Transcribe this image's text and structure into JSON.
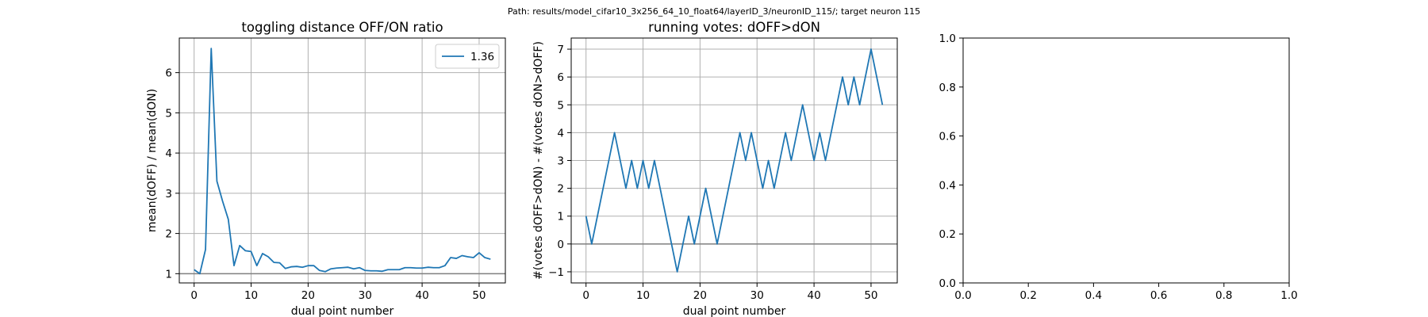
{
  "suptitle": "Path: results/model_cifar10_3x256_64_10_float64/layerID_3/neuronID_115/; target neuron 115",
  "colors": {
    "series": "#1f77b4",
    "hline": "#808080",
    "grid": "#b0b0b0",
    "axes": "#000000",
    "background": "#ffffff"
  },
  "chart_data": [
    {
      "type": "line",
      "title": "toggling distance OFF/ON ratio",
      "xlabel": "dual point number",
      "ylabel": "mean(dOFF) / mean(dON)",
      "xlim": [
        -2.6,
        54.6
      ],
      "ylim": [
        0.77,
        6.86
      ],
      "xticks": [
        0,
        10,
        20,
        30,
        40,
        50
      ],
      "yticks": [
        1,
        2,
        3,
        4,
        5,
        6
      ],
      "grid": true,
      "hline": 1,
      "legend": {
        "position": "upper right",
        "entries": [
          "1.36"
        ]
      },
      "series": [
        {
          "name": "1.36",
          "x": [
            0,
            1,
            2,
            3,
            4,
            5,
            6,
            7,
            8,
            9,
            10,
            11,
            12,
            13,
            14,
            15,
            16,
            17,
            18,
            19,
            20,
            21,
            22,
            23,
            24,
            25,
            26,
            27,
            28,
            29,
            30,
            31,
            32,
            33,
            34,
            35,
            36,
            37,
            38,
            39,
            40,
            41,
            42,
            43,
            44,
            45,
            46,
            47,
            48,
            49,
            50,
            51,
            52
          ],
          "y": [
            1.1,
            1.0,
            1.6,
            6.6,
            3.3,
            2.8,
            2.35,
            1.2,
            1.7,
            1.57,
            1.55,
            1.2,
            1.5,
            1.42,
            1.28,
            1.27,
            1.13,
            1.17,
            1.18,
            1.16,
            1.2,
            1.2,
            1.08,
            1.05,
            1.12,
            1.14,
            1.15,
            1.16,
            1.12,
            1.15,
            1.08,
            1.07,
            1.07,
            1.06,
            1.1,
            1.1,
            1.1,
            1.15,
            1.15,
            1.14,
            1.14,
            1.16,
            1.15,
            1.15,
            1.2,
            1.4,
            1.38,
            1.45,
            1.42,
            1.4,
            1.52,
            1.4,
            1.36
          ]
        }
      ]
    },
    {
      "type": "line",
      "title": "running votes: dOFF>dON",
      "xlabel": "dual point number",
      "ylabel": "#(votes dOFF>dON) - #(votes dON>dOFF)",
      "xlim": [
        -2.6,
        54.6
      ],
      "ylim": [
        -1.4,
        7.4
      ],
      "xticks": [
        0,
        10,
        20,
        30,
        40,
        50
      ],
      "yticks": [
        -1,
        0,
        1,
        2,
        3,
        4,
        5,
        6,
        7
      ],
      "grid": true,
      "hline": 0,
      "series": [
        {
          "x": [
            0,
            1,
            2,
            3,
            4,
            5,
            6,
            7,
            8,
            9,
            10,
            11,
            12,
            13,
            14,
            15,
            16,
            17,
            18,
            19,
            20,
            21,
            22,
            23,
            24,
            25,
            26,
            27,
            28,
            29,
            30,
            31,
            32,
            33,
            34,
            35,
            36,
            37,
            38,
            39,
            40,
            41,
            42,
            43,
            44,
            45,
            46,
            47,
            48,
            49,
            50,
            51,
            52
          ],
          "y": [
            1,
            0,
            1,
            2,
            3,
            4,
            3,
            2,
            3,
            2,
            3,
            2,
            3,
            2,
            1,
            0,
            -1,
            0,
            1,
            0,
            1,
            2,
            1,
            0,
            1,
            2,
            3,
            4,
            3,
            4,
            3,
            2,
            3,
            2,
            3,
            4,
            3,
            4,
            5,
            4,
            3,
            4,
            3,
            4,
            5,
            6,
            5,
            6,
            5,
            6,
            7,
            6,
            5
          ]
        }
      ]
    },
    {
      "type": "line",
      "title": "",
      "xlabel": "",
      "ylabel": "",
      "xlim": [
        0,
        1
      ],
      "ylim": [
        0,
        1
      ],
      "xticks": [
        0,
        0.2,
        0.4,
        0.6,
        0.8,
        1.0
      ],
      "yticks": [
        0,
        0.2,
        0.4,
        0.6,
        0.8,
        1.0
      ],
      "xtick_labels": [
        "0.0",
        "0.2",
        "0.4",
        "0.6",
        "0.8",
        "1.0"
      ],
      "ytick_labels": [
        "0.0",
        "0.2",
        "0.4",
        "0.6",
        "0.8",
        "1.0"
      ],
      "grid": false,
      "series": []
    }
  ]
}
